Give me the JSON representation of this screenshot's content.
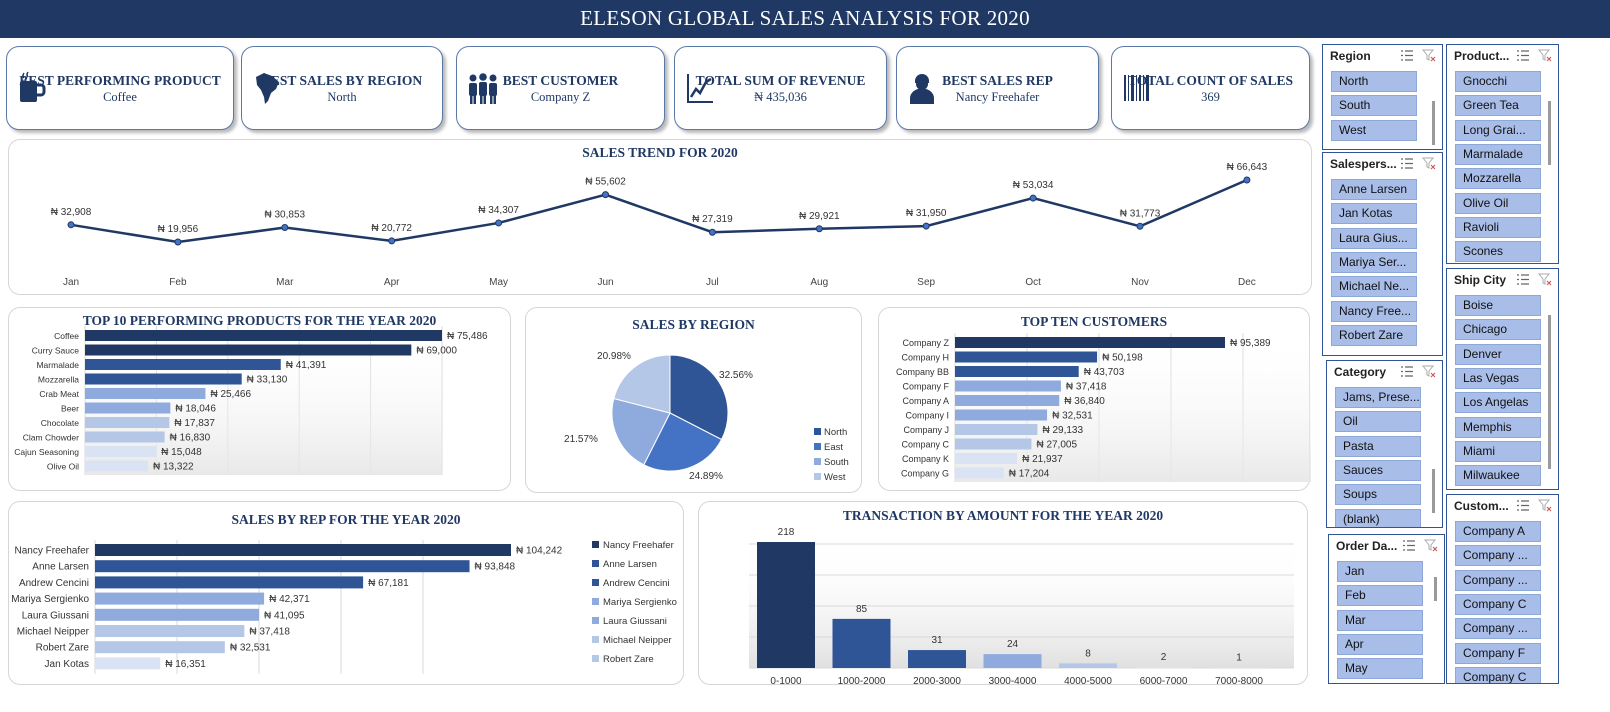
{
  "title": "ELESON GLOBAL SALES ANALYSIS FOR 2020",
  "kpis": [
    {
      "icon": "coffee-mug-icon",
      "label": "BEST PERFORMING PRODUCT",
      "value": "Coffee"
    },
    {
      "icon": "south-america-map-icon",
      "label": "BEST SALES BY REGION",
      "value": "North"
    },
    {
      "icon": "people-group-icon",
      "label": "BEST CUSTOMER",
      "value": "Company Z"
    },
    {
      "icon": "growth-chart-icon",
      "label": "TOTAL SUM OF REVENUE",
      "value": "₦ 435,036"
    },
    {
      "icon": "person-icon",
      "label": "BEST SALES REP",
      "value": "Nancy Freehafer"
    },
    {
      "icon": "barcode-icon",
      "label": "TOTAL COUNT OF SALES",
      "value": "369"
    }
  ],
  "colors": {
    "navy": "#1f3864",
    "blue": "#2f5597",
    "mid": "#4472c4",
    "light": "#8faadc",
    "pale": "#b4c7e7",
    "paler": "#dae3f3"
  },
  "chart_data": [
    {
      "type": "line",
      "title": "SALES TREND FOR 2020",
      "categories": [
        "Jan",
        "Feb",
        "Mar",
        "Apr",
        "May",
        "Jun",
        "Jul",
        "Aug",
        "Sep",
        "Oct",
        "Nov",
        "Dec"
      ],
      "values": [
        32908,
        19956,
        30853,
        20772,
        34307,
        55602,
        27319,
        29921,
        31950,
        53034,
        31773,
        66643
      ],
      "labels": [
        "₦ 32,908",
        "₦ 19,956",
        "₦ 30,853",
        "₦ 20,772",
        "₦ 34,307",
        "₦ 55,602",
        "₦ 27,319",
        "₦ 29,921",
        "₦ 31,950",
        "₦ 53,034",
        "₦ 31,773",
        "₦ 66,643"
      ],
      "grid": false
    },
    {
      "type": "bar",
      "title": "TOP 10 PERFORMING PRODUCTS FOR THE YEAR 2020",
      "categories": [
        "Coffee",
        "Curry Sauce",
        "Marmalade",
        "Mozzarella",
        "Crab Meat",
        "Beer",
        "Chocolate",
        "Clam Chowder",
        "Cajun Seasoning",
        "Olive Oil"
      ],
      "values": [
        75486,
        69000,
        41391,
        33130,
        25466,
        18046,
        17837,
        16830,
        15048,
        13322
      ],
      "labels": [
        "₦ 75,486",
        "₦ 69,000",
        "₦ 41,391",
        "₦ 33,130",
        "₦ 25,466",
        "₦ 18,046",
        "₦ 17,837",
        "₦ 16,830",
        "₦ 15,048",
        "₦ 13,322"
      ],
      "grid": true
    },
    {
      "type": "pie",
      "title": "SALES BY REGION",
      "categories": [
        "North",
        "East",
        "South",
        "West"
      ],
      "values": [
        32.56,
        24.89,
        21.57,
        20.98
      ],
      "labels": [
        "32.56%",
        "24.89%",
        "21.57%",
        "20.98%"
      ],
      "legend": "right"
    },
    {
      "type": "bar",
      "title": "TOP TEN CUSTOMERS",
      "categories": [
        "Company Z",
        "Company H",
        "Company BB",
        "Company F",
        "Company A",
        "Company I",
        "Company J",
        "Company C",
        "Company K",
        "Company G"
      ],
      "values": [
        95389,
        50198,
        43703,
        37418,
        36840,
        32531,
        29133,
        27005,
        21937,
        17204
      ],
      "labels": [
        "₦ 95,389",
        "₦ 50,198",
        "₦ 43,703",
        "₦ 37,418",
        "₦ 36,840",
        "₦ 32,531",
        "₦ 29,133",
        "₦ 27,005",
        "₦ 21,937",
        "₦ 17,204"
      ],
      "grid": true
    },
    {
      "type": "bar",
      "title": "SALES BY REP FOR THE YEAR 2020",
      "categories": [
        "Nancy Freehafer",
        "Anne Larsen",
        "Andrew Cencini",
        "Mariya Sergienko",
        "Laura Giussani",
        "Michael Neipper",
        "Robert Zare",
        "Jan Kotas"
      ],
      "values": [
        104242,
        93848,
        67181,
        42371,
        41095,
        37418,
        32531,
        16351
      ],
      "labels": [
        "₦ 104,242",
        "₦ 93,848",
        "₦ 67,181",
        "₦ 42,371",
        "₦ 41,095",
        "₦ 37,418",
        "₦ 32,531",
        "₦ 16,351"
      ],
      "legend": [
        "Nancy Freehafer",
        "Anne Larsen",
        "Andrew Cencini",
        "Mariya Sergienko",
        "Laura Giussani",
        "Michael Neipper",
        "Robert Zare"
      ],
      "grid": true
    },
    {
      "type": "bar",
      "title": "TRANSACTION BY AMOUNT FOR THE YEAR 2020",
      "categories": [
        "0-1000",
        "1000-2000",
        "2000-3000",
        "3000-4000",
        "4000-5000",
        "6000-7000",
        "7000-8000"
      ],
      "values": [
        218,
        85,
        31,
        24,
        8,
        2,
        1
      ],
      "labels": [
        "218",
        "85",
        "31",
        "24",
        "8",
        "2",
        "1"
      ],
      "grid": true
    }
  ],
  "slicers": [
    {
      "key": "region",
      "title": "Region",
      "items": [
        "North",
        "South",
        "West"
      ]
    },
    {
      "key": "salesperson",
      "title": "Salespers...",
      "items": [
        "Anne Larsen",
        "Jan Kotas",
        "Laura Gius...",
        "Mariya Ser...",
        "Michael Ne...",
        "Nancy Free...",
        "Robert Zare"
      ]
    },
    {
      "key": "category",
      "title": "Category",
      "items": [
        "Jams, Prese...",
        "Oil",
        "Pasta",
        "Sauces",
        "Soups",
        "(blank)"
      ]
    },
    {
      "key": "order-date",
      "title": "Order Da...",
      "items": [
        "Jan",
        "Feb",
        "Mar",
        "Apr",
        "May"
      ]
    },
    {
      "key": "product",
      "title": "Product...",
      "items": [
        "Gnocchi",
        "Green Tea",
        "Long Grai...",
        "Marmalade",
        "Mozzarella",
        "Olive Oil",
        "Ravioli",
        "Scones"
      ]
    },
    {
      "key": "ship-city",
      "title": "Ship City",
      "items": [
        "Boise",
        "Chicago",
        "Denver",
        "Las Vegas",
        "Los Angelas",
        "Memphis",
        "Miami",
        "Milwaukee"
      ]
    },
    {
      "key": "customer",
      "title": "Custom...",
      "items": [
        "Company A",
        "Company ...",
        "Company ...",
        "Company C",
        "Company ...",
        "Company F",
        "Company C"
      ]
    }
  ]
}
